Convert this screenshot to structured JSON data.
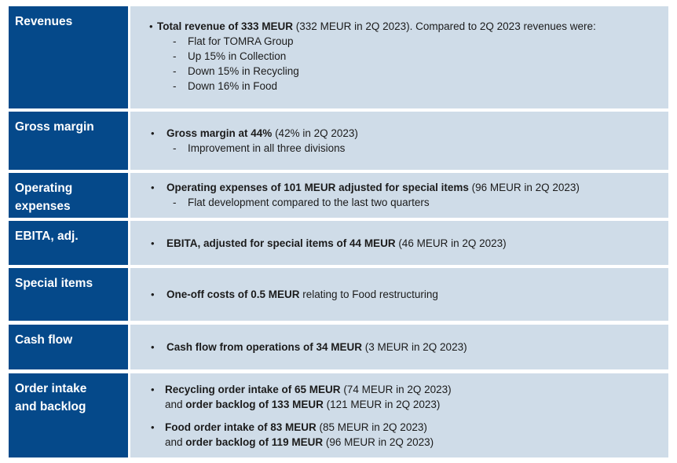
{
  "rows": [
    {
      "label": "Revenues",
      "b1": {
        "bold": "Total revenue of 333 MEUR",
        "rest": " (332 MEUR in 2Q 2023). Compared to 2Q 2023 revenues were:"
      },
      "subs": [
        "Flat for TOMRA Group",
        "Up 15% in Collection",
        "Down 15% in Recycling",
        "Down 16% in Food"
      ]
    },
    {
      "label": "Gross margin",
      "b1": {
        "bold": "Gross margin at 44%",
        "rest": " (42% in 2Q 2023)"
      },
      "subs": [
        "Improvement in all three divisions"
      ]
    },
    {
      "label": "Operating expenses",
      "b1": {
        "bold": "Operating expenses of 101 MEUR adjusted for special items",
        "rest": " (96 MEUR in 2Q 2023)"
      },
      "subs": [
        "Flat development compared to the last two quarters"
      ]
    },
    {
      "label": "EBITA, adj.",
      "b1": {
        "bold": "EBITA, adjusted for special items of 44 MEUR",
        "rest": " (46 MEUR in 2Q 2023)"
      }
    },
    {
      "label": "Special items",
      "b1": {
        "bold": "One-off costs of 0.5 MEUR",
        "rest": " relating to Food restructuring"
      }
    },
    {
      "label": "Cash flow",
      "b1": {
        "bold": "Cash flow from operations of 34 MEUR",
        "rest": " (3 MEUR in 2Q 2023)"
      }
    },
    {
      "label": "Order intake and backlog",
      "items": [
        {
          "l1_bold": "Recycling order intake of 65 MEUR",
          "l1_rest": " (74 MEUR in 2Q 2023)",
          "l2_pre": "and ",
          "l2_bold": "order backlog of 133 MEUR",
          "l2_rest": " (121 MEUR in 2Q 2023)"
        },
        {
          "l1_bold": "Food order intake of 83 MEUR",
          "l1_rest": " (85 MEUR in 2Q 2023)",
          "l2_pre": "and ",
          "l2_bold": "order backlog of 119 MEUR",
          "l2_rest": " (96 MEUR in 2Q 2023)"
        }
      ]
    }
  ],
  "bullet_char": "•",
  "dash_char": "-"
}
